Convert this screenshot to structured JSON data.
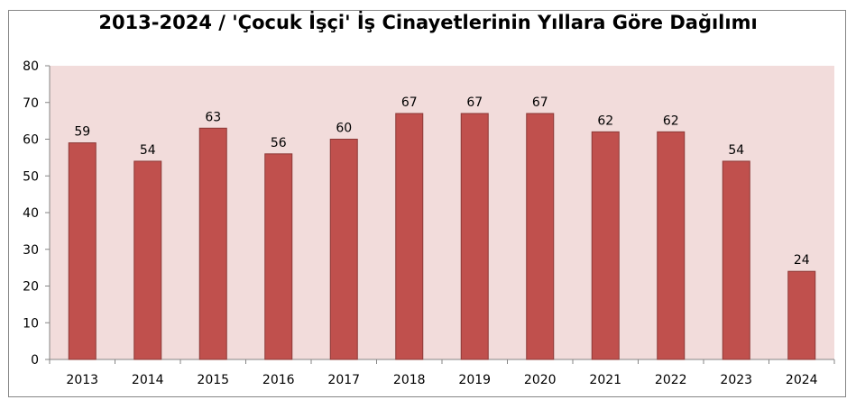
{
  "chart_data": {
    "type": "bar",
    "title": "2013-2024 / 'Çocuk İşçi' İş Cinayetlerinin Yıllara Göre Dağılımı",
    "categories": [
      "2013",
      "2014",
      "2015",
      "2016",
      "2017",
      "2018",
      "2019",
      "2020",
      "2021",
      "2022",
      "2023",
      "2024"
    ],
    "values": [
      59,
      54,
      63,
      56,
      60,
      67,
      67,
      67,
      62,
      62,
      54,
      24
    ],
    "ylim": [
      0,
      80
    ],
    "yticks": [
      "0",
      "10",
      "20",
      "30",
      "40",
      "50",
      "60",
      "70",
      "80"
    ],
    "grid": false,
    "legend": "none",
    "colors": {
      "bar": "#c0504d",
      "bar_edge": "#8c3836",
      "plot_background": "#f2dcdb"
    }
  }
}
